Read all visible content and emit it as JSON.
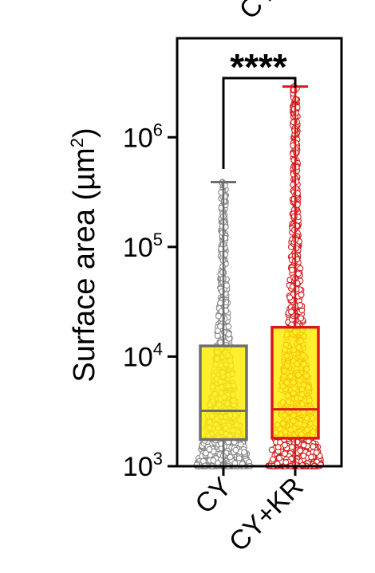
{
  "chart_data": {
    "type": "box",
    "top_label_fragment": "CY",
    "ylabel_main": "Surface area (µm",
    "ylabel_sup": "2",
    "ylabel_close": ")",
    "yscale": "log",
    "ylim": [
      1000,
      8000000
    ],
    "yticks": [
      {
        "value": 1000,
        "base": "10",
        "exp": "3"
      },
      {
        "value": 10000,
        "base": "10",
        "exp": "4"
      },
      {
        "value": 100000,
        "base": "10",
        "exp": "5"
      },
      {
        "value": 1000000,
        "base": "10",
        "exp": "6"
      }
    ],
    "categories": [
      "CY",
      "CY+KR"
    ],
    "boxes": [
      {
        "category": "CY",
        "whisker_low": 1000,
        "q1": 1750,
        "median": 3200,
        "q3": 12500,
        "whisker_high": 390000,
        "box_fill": "#ffec00",
        "box_stroke": "#6e6e6e",
        "point_stroke": "#8a8a8a",
        "n_points": 900
      },
      {
        "category": "CY+KR",
        "whisker_low": 1000,
        "q1": 1800,
        "median": 3300,
        "q3": 18500,
        "whisker_high": 2900000,
        "box_fill": "#ffec00",
        "box_stroke": "#d61a1a",
        "point_stroke": "#d61a1a",
        "n_points": 1000
      }
    ],
    "significance": {
      "label": "****",
      "between": [
        "CY",
        "CY+KR"
      ]
    },
    "grid": false
  }
}
